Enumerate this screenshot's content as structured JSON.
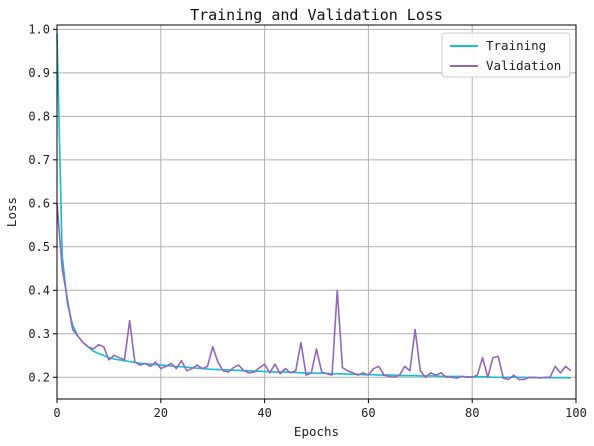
{
  "chart_data": {
    "type": "line",
    "title": "Training and Validation Loss",
    "xlabel": "Epochs",
    "ylabel": "Loss",
    "xlim": [
      0,
      100
    ],
    "ylim": [
      0.15,
      1.01
    ],
    "xticks": [
      0,
      20,
      40,
      60,
      80,
      100
    ],
    "xtick_labels": [
      "0",
      "20",
      "40",
      "60",
      "80",
      "100"
    ],
    "yticks": [
      0.2,
      0.3,
      0.4,
      0.5,
      0.6,
      0.7,
      0.8,
      0.9,
      1.0
    ],
    "ytick_labels": [
      "0.2",
      "0.3",
      "0.4",
      "0.5",
      "0.6",
      "0.7",
      "0.8",
      "0.9",
      "1.0"
    ],
    "grid": true,
    "legend_position": "top-right",
    "x": [
      0,
      1,
      2,
      3,
      4,
      5,
      6,
      7,
      8,
      9,
      10,
      11,
      12,
      13,
      14,
      15,
      16,
      17,
      18,
      19,
      20,
      21,
      22,
      23,
      24,
      25,
      26,
      27,
      28,
      29,
      30,
      31,
      32,
      33,
      34,
      35,
      36,
      37,
      38,
      39,
      40,
      41,
      42,
      43,
      44,
      45,
      46,
      47,
      48,
      49,
      50,
      51,
      52,
      53,
      54,
      55,
      56,
      57,
      58,
      59,
      60,
      61,
      62,
      63,
      64,
      65,
      66,
      67,
      68,
      69,
      70,
      71,
      72,
      73,
      74,
      75,
      76,
      77,
      78,
      79,
      80,
      81,
      82,
      83,
      84,
      85,
      86,
      87,
      88,
      89,
      90,
      91,
      92,
      93,
      94,
      95,
      96,
      97,
      98,
      99
    ],
    "series": [
      {
        "name": "Training",
        "color": "#17becf",
        "values": [
          0.99,
          0.48,
          0.37,
          0.32,
          0.295,
          0.28,
          0.27,
          0.26,
          0.255,
          0.25,
          0.245,
          0.242,
          0.24,
          0.238,
          0.236,
          0.234,
          0.232,
          0.231,
          0.23,
          0.229,
          0.228,
          0.227,
          0.226,
          0.225,
          0.224,
          0.223,
          0.222,
          0.221,
          0.22,
          0.219,
          0.218,
          0.218,
          0.217,
          0.217,
          0.216,
          0.216,
          0.215,
          0.215,
          0.214,
          0.214,
          0.213,
          0.213,
          0.212,
          0.212,
          0.212,
          0.211,
          0.211,
          0.21,
          0.21,
          0.21,
          0.209,
          0.209,
          0.209,
          0.208,
          0.208,
          0.208,
          0.207,
          0.207,
          0.207,
          0.206,
          0.206,
          0.206,
          0.205,
          0.205,
          0.205,
          0.205,
          0.204,
          0.204,
          0.204,
          0.204,
          0.203,
          0.203,
          0.203,
          0.203,
          0.202,
          0.202,
          0.202,
          0.202,
          0.202,
          0.201,
          0.201,
          0.201,
          0.201,
          0.201,
          0.2,
          0.2,
          0.2,
          0.2,
          0.2,
          0.2,
          0.2,
          0.199,
          0.199,
          0.199,
          0.199,
          0.199,
          0.199,
          0.199,
          0.199,
          0.198
        ]
      },
      {
        "name": "Validation",
        "color": "#9467bd",
        "values": [
          0.6,
          0.45,
          0.38,
          0.31,
          0.295,
          0.28,
          0.27,
          0.265,
          0.275,
          0.27,
          0.24,
          0.25,
          0.245,
          0.24,
          0.33,
          0.235,
          0.228,
          0.232,
          0.225,
          0.235,
          0.22,
          0.225,
          0.232,
          0.22,
          0.238,
          0.215,
          0.22,
          0.228,
          0.22,
          0.225,
          0.27,
          0.235,
          0.215,
          0.212,
          0.222,
          0.228,
          0.215,
          0.21,
          0.212,
          0.222,
          0.23,
          0.21,
          0.23,
          0.208,
          0.22,
          0.21,
          0.215,
          0.28,
          0.205,
          0.21,
          0.265,
          0.212,
          0.208,
          0.205,
          0.4,
          0.222,
          0.215,
          0.21,
          0.205,
          0.21,
          0.205,
          0.22,
          0.225,
          0.205,
          0.202,
          0.2,
          0.205,
          0.225,
          0.215,
          0.31,
          0.215,
          0.2,
          0.21,
          0.205,
          0.21,
          0.2,
          0.2,
          0.198,
          0.202,
          0.2,
          0.2,
          0.205,
          0.245,
          0.2,
          0.245,
          0.248,
          0.198,
          0.195,
          0.205,
          0.195,
          0.195,
          0.2,
          0.2,
          0.198,
          0.2,
          0.2,
          0.225,
          0.21,
          0.225,
          0.215
        ]
      }
    ]
  }
}
